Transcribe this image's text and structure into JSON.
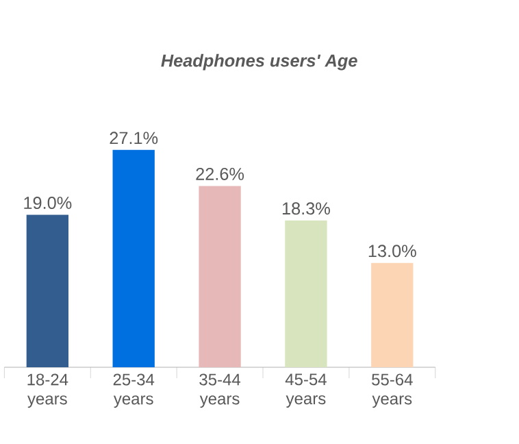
{
  "chart_data": {
    "type": "bar",
    "title": "Headphones users' Age",
    "categories": [
      "18-24 years",
      "25-34 years",
      "35-44 years",
      "45-54 years",
      "55-64 years"
    ],
    "values": [
      19.0,
      27.1,
      22.6,
      18.3,
      13.0
    ],
    "value_labels": [
      "19.0%",
      "27.1%",
      "22.6%",
      "18.3%",
      "13.0%"
    ],
    "colors": [
      "#335c8f",
      "#0070e0",
      "#e6b9b8",
      "#d7e4bd",
      "#fcd5b5"
    ]
  }
}
